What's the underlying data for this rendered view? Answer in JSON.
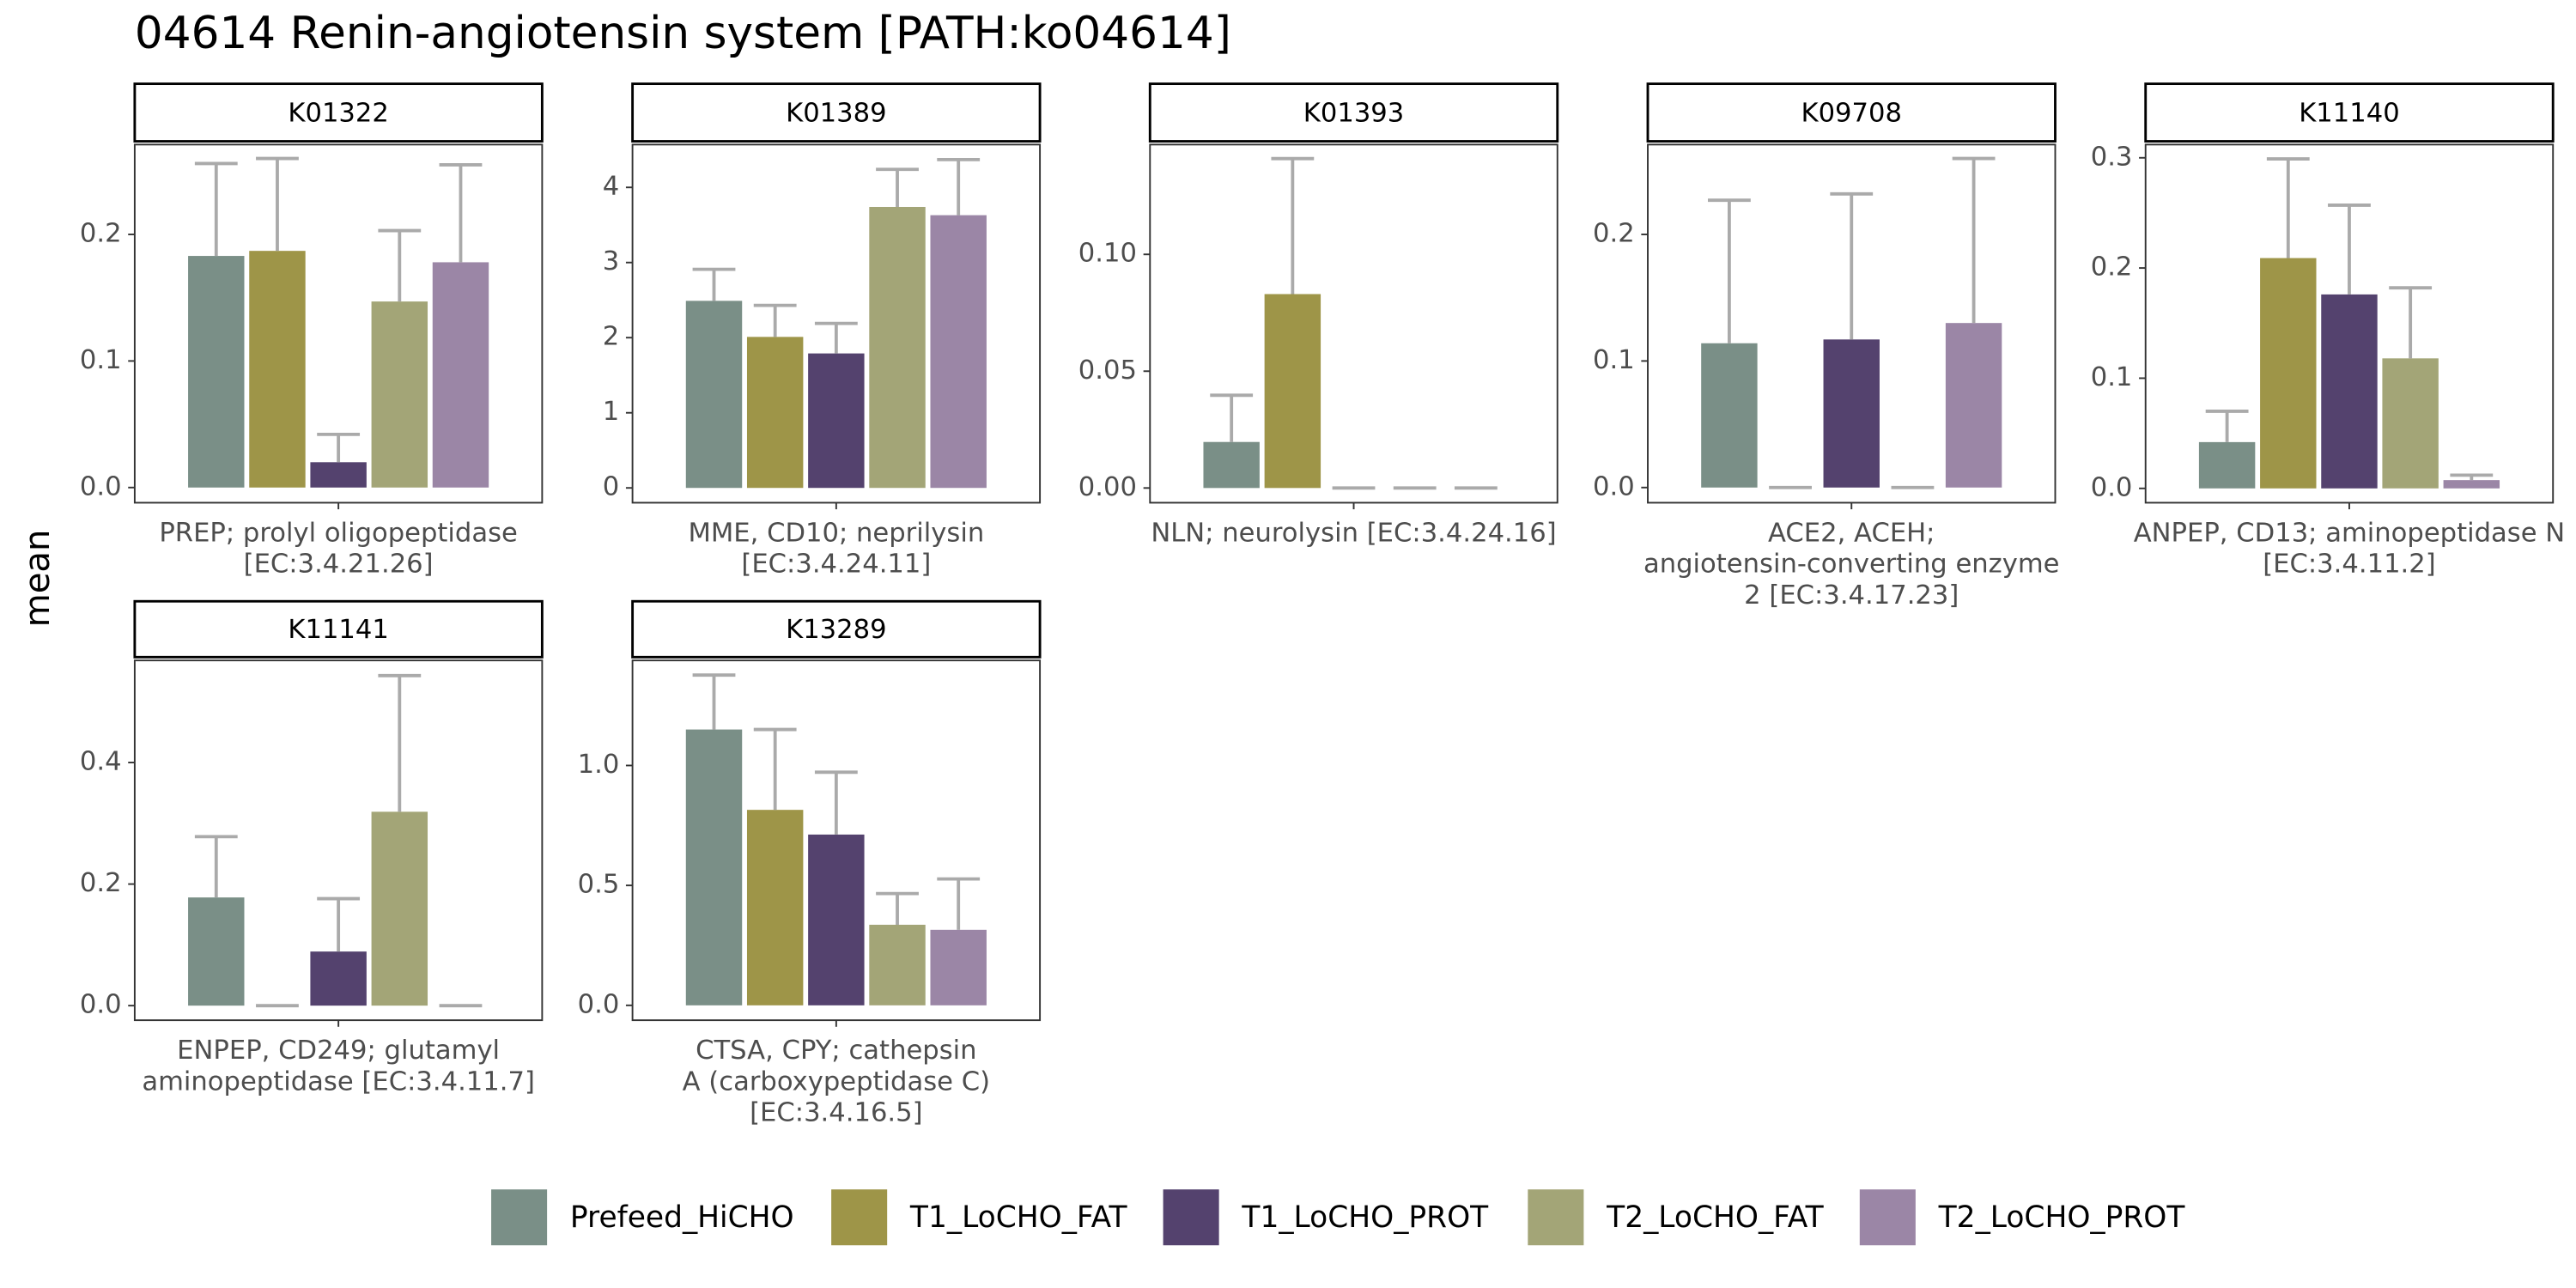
{
  "title": "04614 Renin-angiotensin system [PATH:ko04614]",
  "y_label": "mean",
  "legend": {
    "names": [
      "Prefeed_HiCHO",
      "T1_LoCHO_FAT",
      "T1_LoCHO_PROT",
      "T2_LoCHO_FAT",
      "T2_LoCHO_PROT"
    ],
    "colors": [
      "#7a8f87",
      "#9e9548",
      "#54426e",
      "#a3a577",
      "#9b86a6"
    ]
  },
  "chart_data": [
    {
      "type": "bar",
      "title": "K01322",
      "x_label": [
        "PREP; prolyl oligopeptidase",
        "[EC:3.4.21.26]"
      ],
      "values": [
        0.183,
        0.187,
        0.02,
        0.147,
        0.178
      ],
      "errors": [
        0.073,
        0.073,
        0.022,
        0.056,
        0.077
      ],
      "ylim": [
        -0.012,
        0.271
      ],
      "yticks": [
        {
          "value": 0,
          "label": "0.0"
        },
        0.1,
        0.2
      ]
    },
    {
      "type": "bar",
      "title": "K01389",
      "x_label": [
        "MME, CD10; neprilysin",
        "[EC:3.4.24.11]"
      ],
      "values": [
        2.49,
        2.01,
        1.79,
        3.74,
        3.63
      ],
      "errors": [
        0.42,
        0.42,
        0.4,
        0.5,
        0.74
      ],
      "ylim": [
        -0.197,
        4.57
      ],
      "yticks": [
        0,
        1,
        2,
        3,
        4
      ]
    },
    {
      "type": "bar",
      "title": "K01393",
      "x_label": [
        "NLN; neurolysin [EC:3.4.24.16]"
      ],
      "values": [
        0.0197,
        0.083,
        0,
        0,
        0
      ],
      "errors": [
        0.02,
        0.058,
        0,
        0,
        0
      ],
      "ylim": [
        -0.0063,
        0.147
      ],
      "yticks": [
        {
          "value": 0,
          "label": "0.00"
        },
        0.05,
        {
          "value": 0.1,
          "label": "0.10"
        }
      ]
    },
    {
      "type": "bar",
      "title": "K09708",
      "x_label": [
        "ACE2, ACEH;",
        "angiotensin-converting enzyme",
        "2 [EC:3.4.17.23]"
      ],
      "values": [
        0.114,
        0,
        0.117,
        0,
        0.13
      ],
      "errors": [
        0.113,
        0,
        0.115,
        0,
        0.13
      ],
      "ylim": [
        -0.012,
        0.271
      ],
      "yticks": [
        {
          "value": 0,
          "label": "0.0"
        },
        0.1,
        0.2
      ]
    },
    {
      "type": "bar",
      "title": "K11140",
      "x_label": [
        "ANPEP, CD13; aminopeptidase N",
        "[EC:3.4.11.2]"
      ],
      "values": [
        0.042,
        0.209,
        0.176,
        0.118,
        0.0075
      ],
      "errors": [
        0.028,
        0.09,
        0.081,
        0.064,
        0.0045
      ],
      "ylim": [
        -0.013,
        0.312
      ],
      "yticks": [
        {
          "value": 0,
          "label": "0.0"
        },
        0.1,
        0.2,
        0.3
      ]
    },
    {
      "type": "bar",
      "title": "K11141",
      "x_label": [
        "ENPEP, CD249; glutamyl",
        "aminopeptidase [EC:3.4.11.7]"
      ],
      "values": [
        0.178,
        0,
        0.089,
        0.319,
        0
      ],
      "errors": [
        0.1,
        0,
        0.087,
        0.224,
        0
      ],
      "ylim": [
        -0.024,
        0.568
      ],
      "yticks": [
        {
          "value": 0,
          "label": "0.0"
        },
        0.2,
        0.4
      ]
    },
    {
      "type": "bar",
      "title": "K13289",
      "x_label": [
        "CTSA, CPY; cathepsin",
        "A (carboxypeptidase C)",
        "[EC:3.4.16.5]"
      ],
      "values": [
        1.15,
        0.815,
        0.712,
        0.336,
        0.315
      ],
      "errors": [
        0.227,
        0.335,
        0.26,
        0.13,
        0.212
      ],
      "ylim": [
        -0.062,
        1.438
      ],
      "yticks": [
        {
          "value": 0,
          "label": "0.0"
        },
        0.5,
        {
          "value": 1,
          "label": "1.0"
        }
      ]
    }
  ]
}
